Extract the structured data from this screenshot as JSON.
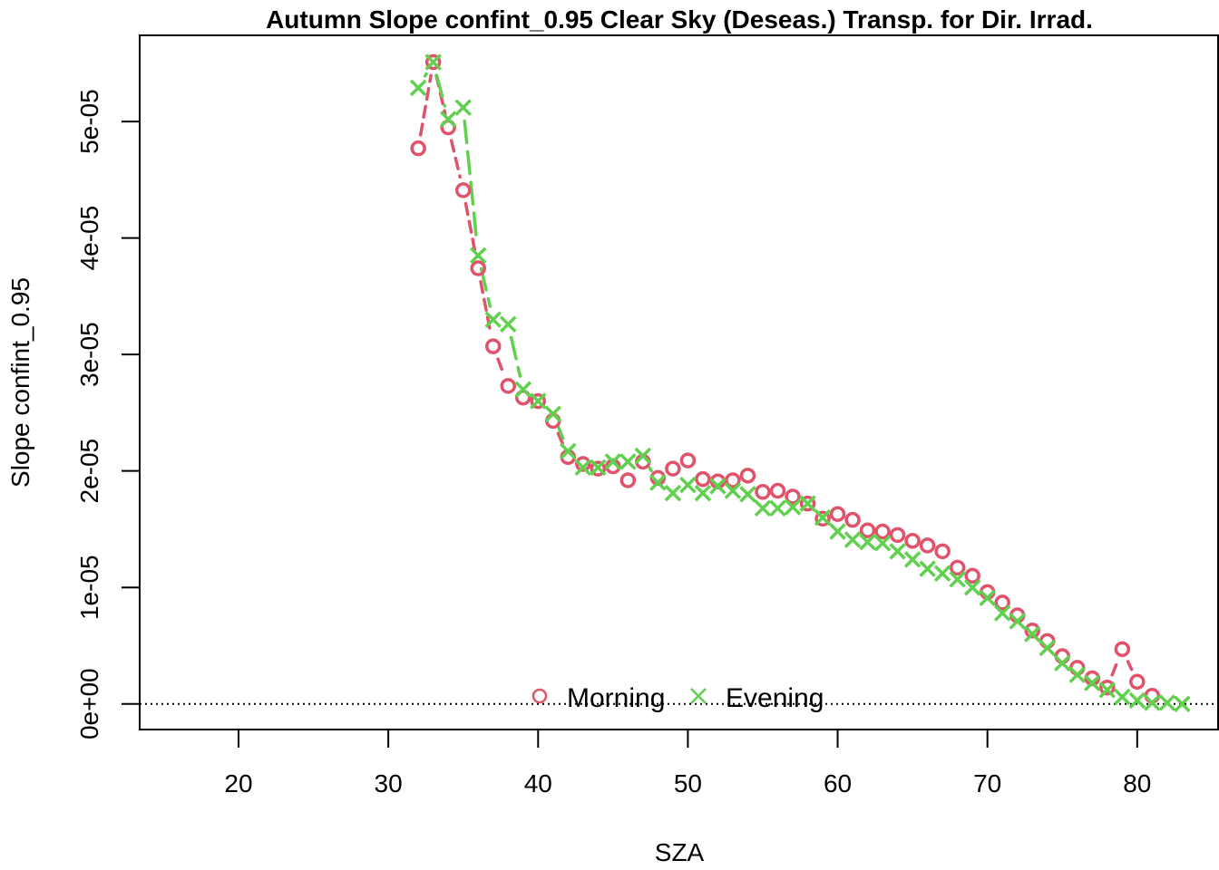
{
  "chart_data": {
    "type": "line",
    "title": "Autumn Slope confint_0.95 Clear Sky (Deseas.) Transp. for Dir. Irrad.",
    "xlabel": "SZA",
    "ylabel": "Slope confint_0.95",
    "xlim": [
      13.4,
      85.4
    ],
    "ylim": [
      -2.2e-06,
      5.74e-05
    ],
    "x_ticks": [
      20,
      30,
      40,
      50,
      60,
      70,
      80
    ],
    "x_tick_labels": [
      "20",
      "30",
      "40",
      "50",
      "60",
      "70",
      "80"
    ],
    "y_ticks": [
      0,
      1e-05,
      2e-05,
      3e-05,
      4e-05,
      5e-05
    ],
    "y_tick_labels": [
      "0e+00",
      "1e-05",
      "2e-05",
      "3e-05",
      "4e-05",
      "5e-05"
    ],
    "reference_line": {
      "y": 0,
      "style": "dotted"
    },
    "grid": false,
    "legend": {
      "position": "bottom-center",
      "entries": [
        "Morning",
        "Evening"
      ]
    },
    "series": [
      {
        "name": "Morning",
        "marker": "circle",
        "line": "dashed",
        "color": "#DF536B",
        "x": [
          32,
          33,
          34,
          35,
          36,
          37,
          38,
          39,
          40,
          41,
          42,
          43,
          44,
          45,
          46,
          47,
          48,
          49,
          50,
          51,
          52,
          53,
          54,
          55,
          56,
          57,
          58,
          59,
          60,
          61,
          62,
          63,
          64,
          65,
          66,
          67,
          68,
          69,
          70,
          71,
          72,
          73,
          74,
          75,
          76,
          77,
          78,
          79,
          80,
          81
        ],
        "y": [
          4.77e-05,
          5.51e-05,
          4.95e-05,
          4.41e-05,
          3.74e-05,
          3.07e-05,
          2.73e-05,
          2.63e-05,
          2.6e-05,
          2.43e-05,
          2.12e-05,
          2.06e-05,
          2.02e-05,
          2.04e-05,
          1.92e-05,
          2.08e-05,
          1.94e-05,
          2.02e-05,
          2.09e-05,
          1.93e-05,
          1.91e-05,
          1.92e-05,
          1.96e-05,
          1.82e-05,
          1.83e-05,
          1.78e-05,
          1.72e-05,
          1.59e-05,
          1.63e-05,
          1.58e-05,
          1.49e-05,
          1.48e-05,
          1.45e-05,
          1.4e-05,
          1.36e-05,
          1.31e-05,
          1.17e-05,
          1.1e-05,
          9.6e-06,
          8.7e-06,
          7.6e-06,
          6.3e-06,
          5.4e-06,
          4.1e-06,
          3.1e-06,
          2.2e-06,
          1.4e-06,
          4.7e-06,
          1.9e-06,
          7e-07
        ]
      },
      {
        "name": "Evening",
        "marker": "cross",
        "line": "longdash",
        "color": "#61D04F",
        "x": [
          32,
          33,
          34,
          35,
          36,
          37,
          38,
          39,
          40,
          41,
          42,
          43,
          44,
          45,
          46,
          47,
          48,
          49,
          50,
          51,
          52,
          53,
          54,
          55,
          56,
          57,
          58,
          59,
          60,
          61,
          62,
          63,
          64,
          65,
          66,
          67,
          68,
          69,
          70,
          71,
          72,
          73,
          74,
          75,
          76,
          77,
          78,
          79,
          80,
          81,
          82,
          83
        ],
        "y": [
          5.29e-05,
          5.51e-05,
          5.02e-05,
          5.12e-05,
          3.85e-05,
          3.3e-05,
          3.26e-05,
          2.7e-05,
          2.6e-05,
          2.49e-05,
          2.17e-05,
          2.03e-05,
          2.03e-05,
          2.08e-05,
          2.08e-05,
          2.13e-05,
          1.9e-05,
          1.81e-05,
          1.88e-05,
          1.81e-05,
          1.87e-05,
          1.83e-05,
          1.8e-05,
          1.68e-05,
          1.68e-05,
          1.69e-05,
          1.72e-05,
          1.6e-05,
          1.48e-05,
          1.41e-05,
          1.39e-05,
          1.38e-05,
          1.31e-05,
          1.24e-05,
          1.16e-05,
          1.12e-05,
          1.07e-05,
          1e-05,
          9.1e-06,
          7.8e-06,
          7.1e-06,
          6e-06,
          4.8e-06,
          3.5e-06,
          2.5e-06,
          1.8e-06,
          1.2e-06,
          6e-07,
          3e-07,
          1e-07,
          1e-07,
          0.0
        ]
      }
    ]
  }
}
